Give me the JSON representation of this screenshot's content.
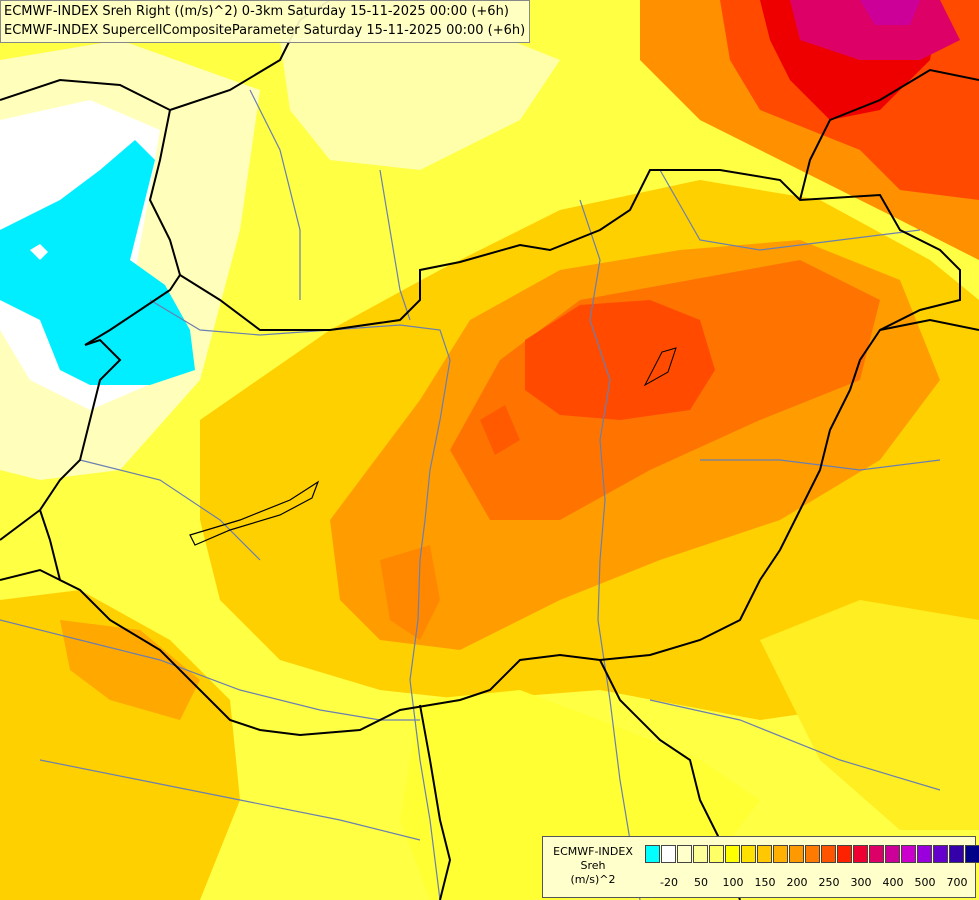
{
  "titles": [
    "ECMWF-INDEX Sreh Right ((m/s)^2) 0-3km Saturday 15-11-2025 00:00 (+6h)",
    "ECMWF-INDEX SupercellCompositeParameter Saturday 15-11-2025 00:00 (+6h)"
  ],
  "legend": {
    "line1": "ECMWF-INDEX",
    "line2": "Sreh",
    "line3": "(m/s)^2",
    "colors": [
      "#00ffff",
      "#ffffff",
      "#ffffcc",
      "#ffff99",
      "#ffff66",
      "#ffff00",
      "#ffe000",
      "#ffc800",
      "#ffb000",
      "#ff9900",
      "#ff7a00",
      "#ff5500",
      "#ff2200",
      "#ee0033",
      "#dd0066",
      "#cc0099",
      "#cc00cc",
      "#9900dd",
      "#6600cc",
      "#3300aa",
      "#000088"
    ],
    "ticks": [
      "-20",
      "50",
      "100",
      "150",
      "200",
      "250",
      "300",
      "400",
      "500",
      "700"
    ]
  },
  "colors": {
    "cyan": "#00eeff",
    "white": "#ffffff",
    "pale_yellow": "#ffffbb",
    "yellow": "#ffff33",
    "gold": "#ffd000",
    "orange": "#ff9d00",
    "dark_orange": "#ff7400",
    "red_orange": "#ff4a00",
    "red": "#ee0000",
    "magenta": "#dd0077",
    "border": "#000000",
    "river": "#6a7fb0"
  }
}
